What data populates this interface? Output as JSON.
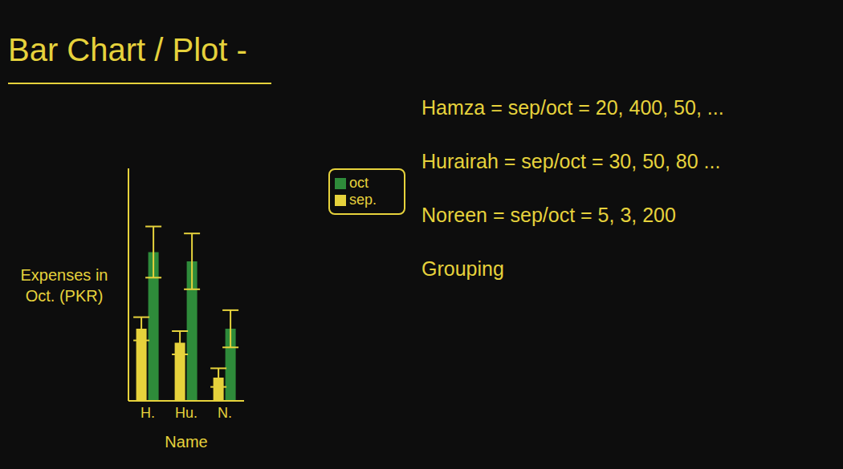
{
  "chart_data": {
    "type": "bar",
    "title": "Bar Chart / Plot -",
    "y_label": "Expenses in Oct. (PKR)",
    "x_label": "Name",
    "categories": [
      "H.",
      "Hu.",
      "N."
    ],
    "series": [
      {
        "name": "sep.",
        "color": "#e6d23c",
        "values": [
          31,
          25,
          10
        ],
        "error": [
          5,
          5,
          4
        ]
      },
      {
        "name": "oct",
        "color": "#2e8b3a",
        "values": [
          64,
          60,
          31
        ],
        "error": [
          11,
          12,
          8
        ]
      }
    ],
    "ylim": [
      0,
      100
    ],
    "tick_labels": "x",
    "legend": "right",
    "grid": false,
    "annotations": [
      "Hamza = sep/oct = 20, 400, 50, ...",
      "Hurairah = sep/oct = 30, 50, 80 ...",
      "Noreen = sep/oct = 5, 3, 200",
      "Grouping"
    ]
  }
}
